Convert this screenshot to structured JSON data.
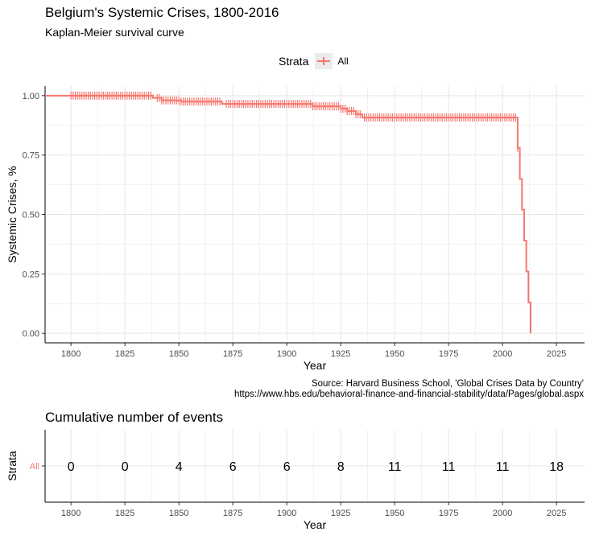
{
  "title": "Belgium's Systemic Crises, 1800-2016",
  "subtitle": "Kaplan-Meier survival curve",
  "legend": {
    "title": "Strata",
    "entries": [
      "All"
    ]
  },
  "caption": {
    "line1": "Source: Harvard Business School, 'Global Crises Data by Country'",
    "line2": "https://www.hbs.edu/behavioral-finance-and-financial-stability/data/Pages/global.aspx"
  },
  "colors": {
    "curve": "#F8766D",
    "grid": "#e5e5e5"
  },
  "chart_data": [
    {
      "type": "line",
      "title": "Belgium's Systemic Crises, 1800-2016",
      "subtitle": "Kaplan-Meier survival curve",
      "xlabel": "Year",
      "ylabel": "Systemic Crises, %",
      "xlim": [
        1788,
        2038
      ],
      "ylim": [
        -0.04,
        1.04
      ],
      "xticks": [
        1800,
        1825,
        1850,
        1875,
        1900,
        1925,
        1950,
        1975,
        2000,
        2025
      ],
      "yticks": [
        0.0,
        0.25,
        0.5,
        0.75,
        1.0
      ],
      "ytick_labels": [
        "0.00",
        "0.25",
        "0.50",
        "0.75",
        "1.00"
      ],
      "grid": true,
      "legend_position": "top",
      "series": [
        {
          "name": "All",
          "step_x": [
            1788,
            1838,
            1842,
            1851,
            1870,
            1912,
            1925,
            1928,
            1932,
            1935,
            2007,
            2008,
            2009,
            2010,
            2011,
            2012,
            2013
          ],
          "step_y": [
            1.0,
            0.99,
            0.98,
            0.975,
            0.965,
            0.955,
            0.945,
            0.935,
            0.922,
            0.908,
            0.78,
            0.65,
            0.52,
            0.39,
            0.26,
            0.13,
            0.0
          ],
          "censor_ranges": [
            [
              1800,
              1837
            ],
            [
              1840,
              1869
            ],
            [
              1872,
              1925
            ],
            [
              1926,
              1934
            ],
            [
              1936,
              2007
            ]
          ]
        }
      ]
    },
    {
      "type": "table",
      "title": "Cumulative number of events",
      "xlabel": "Year",
      "ylabel": "Strata",
      "xlim": [
        1788,
        2038
      ],
      "xticks": [
        1800,
        1825,
        1850,
        1875,
        1900,
        1925,
        1950,
        1975,
        2000,
        2025
      ],
      "row_label": "All",
      "x": [
        1800,
        1825,
        1850,
        1875,
        1900,
        1925,
        1950,
        1975,
        2000,
        2025
      ],
      "values": [
        0,
        0,
        4,
        6,
        6,
        8,
        11,
        11,
        11,
        18
      ]
    }
  ]
}
